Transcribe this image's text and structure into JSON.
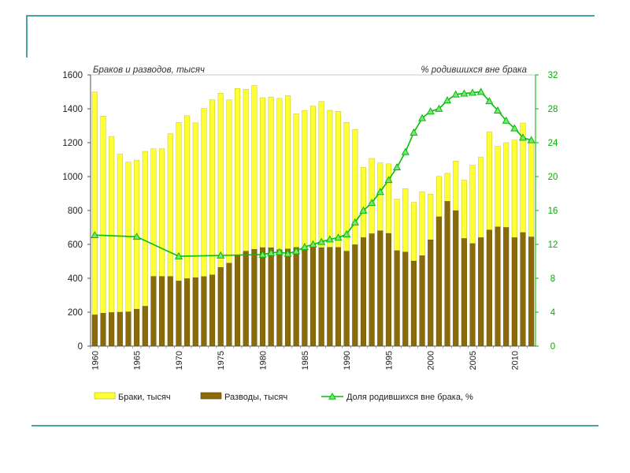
{
  "chart_data": {
    "type": "bar",
    "left_axis_title": "Браков и разводов, тысяч",
    "right_axis_title": "% родившихся вне брака",
    "y_left": {
      "min": 0,
      "max": 1600,
      "ticks": [
        0,
        200,
        400,
        600,
        800,
        1000,
        1200,
        1400,
        1600
      ]
    },
    "y_right": {
      "min": 0,
      "max": 32,
      "ticks": [
        0,
        4,
        8,
        12,
        16,
        20,
        24,
        28,
        32
      ]
    },
    "x_ticks": [
      1960,
      1965,
      1970,
      1975,
      1980,
      1985,
      1990,
      1995,
      2000,
      2005,
      2010
    ],
    "years": [
      1960,
      1961,
      1962,
      1963,
      1964,
      1965,
      1966,
      1967,
      1968,
      1969,
      1970,
      1971,
      1972,
      1973,
      1974,
      1975,
      1976,
      1977,
      1978,
      1979,
      1980,
      1981,
      1982,
      1983,
      1984,
      1985,
      1986,
      1987,
      1988,
      1989,
      1990,
      1991,
      1992,
      1993,
      1994,
      1995,
      1996,
      1997,
      1998,
      1999,
      2000,
      2001,
      2002,
      2003,
      2004,
      2005,
      2006,
      2007,
      2008,
      2009,
      2010,
      2011,
      2012
    ],
    "series": [
      {
        "name": "Браки, тысяч",
        "kind": "bar",
        "axis": "left",
        "color": "#ffff33",
        "stroke": "#b5b51a",
        "values": [
          1499,
          1357,
          1237,
          1133,
          1085,
          1097,
          1149,
          1164,
          1164,
          1253,
          1319,
          1359,
          1317,
          1402,
          1453,
          1492,
          1452,
          1520,
          1515,
          1537,
          1465,
          1469,
          1461,
          1478,
          1370,
          1390,
          1416,
          1443,
          1391,
          1385,
          1320,
          1277,
          1054,
          1107,
          1080,
          1075,
          867,
          929,
          848,
          911,
          897,
          1001,
          1019,
          1092,
          979,
          1067,
          1114,
          1263,
          1179,
          1200,
          1215,
          1316,
          1214
        ]
      },
      {
        "name": "Разводы, тысяч",
        "kind": "bar",
        "axis": "left",
        "color": "#8c6a0a",
        "stroke": "#5e4606",
        "values": [
          184,
          194,
          198,
          200,
          202,
          218,
          235,
          411,
          411,
          411,
          384,
          398,
          404,
          410,
          420,
          464,
          489,
          537,
          560,
          571,
          581,
          580,
          569,
          573,
          582,
          570,
          584,
          581,
          583,
          582,
          560,
          598,
          640,
          663,
          680,
          665,
          563,
          555,
          502,
          533,
          627,
          763,
          854,
          799,
          635,
          605,
          640,
          685,
          703,
          700,
          640,
          670,
          644
        ]
      },
      {
        "name": "Доля родившихся вне брака, %",
        "kind": "line",
        "axis": "right",
        "color": "#00c000",
        "points": [
          [
            1960,
            13.1
          ],
          [
            1965,
            12.9
          ],
          [
            1970,
            10.6
          ],
          [
            1975,
            10.7
          ],
          [
            1980,
            10.8
          ],
          [
            1981,
            11.0
          ],
          [
            1982,
            11.1
          ],
          [
            1983,
            10.9
          ],
          [
            1984,
            11.2
          ],
          [
            1985,
            11.7
          ],
          [
            1986,
            12.0
          ],
          [
            1987,
            12.3
          ],
          [
            1988,
            12.6
          ],
          [
            1989,
            12.8
          ],
          [
            1990,
            13.2
          ],
          [
            1991,
            14.6
          ],
          [
            1992,
            16.0
          ],
          [
            1993,
            16.9
          ],
          [
            1994,
            18.2
          ],
          [
            1995,
            19.6
          ],
          [
            1996,
            21.1
          ],
          [
            1997,
            22.9
          ],
          [
            1998,
            25.2
          ],
          [
            1999,
            26.9
          ],
          [
            2000,
            27.7
          ],
          [
            2001,
            28.0
          ],
          [
            2002,
            29.0
          ],
          [
            2003,
            29.7
          ],
          [
            2004,
            29.8
          ],
          [
            2005,
            29.9
          ],
          [
            2006,
            30.0
          ],
          [
            2007,
            28.9
          ],
          [
            2008,
            27.8
          ],
          [
            2009,
            26.6
          ],
          [
            2010,
            25.7
          ],
          [
            2011,
            24.6
          ],
          [
            2012,
            24.3
          ]
        ]
      }
    ],
    "legend": {
      "position": "bottom",
      "items": [
        {
          "label": "Браки, тысяч",
          "swatch": "bar",
          "color": "#ffff33"
        },
        {
          "label": "Разводы, тысяч",
          "swatch": "bar",
          "color": "#8c6a0a"
        },
        {
          "label": "Доля родившихся вне брака, %",
          "swatch": "line",
          "color": "#00c000"
        }
      ]
    }
  }
}
